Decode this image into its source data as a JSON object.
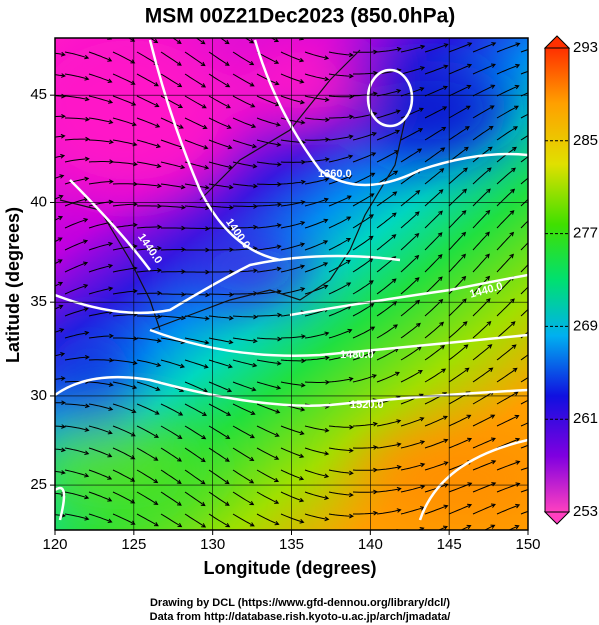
{
  "chart_data": {
    "type": "map",
    "title": "MSM 00Z21Dec2023 (850.0hPa)",
    "x_label": "Longitude (degrees)",
    "y_label": "Latitude  (degrees)",
    "projection": "mercator",
    "xlim": [
      120,
      150
    ],
    "xticks": [
      120,
      125,
      130,
      135,
      140,
      145,
      150
    ],
    "ylim": [
      22.4,
      47.5
    ],
    "yticks": [
      25,
      30,
      35,
      40,
      45
    ],
    "colorbar": {
      "lim": [
        253,
        293
      ],
      "ticks": [
        253,
        261,
        269,
        277,
        285,
        293
      ]
    },
    "contour_labels": [
      "1360.0",
      "1400.0",
      "1440.0",
      "1440.0",
      "1480.0",
      "1520.0"
    ],
    "footer": [
      "Drawing by DCL (https://www.gfd-dennou.org/library/dcl/)",
      "Data from http://database.rish.kyoto-u.ac.jp/arch/jmadata/"
    ]
  }
}
